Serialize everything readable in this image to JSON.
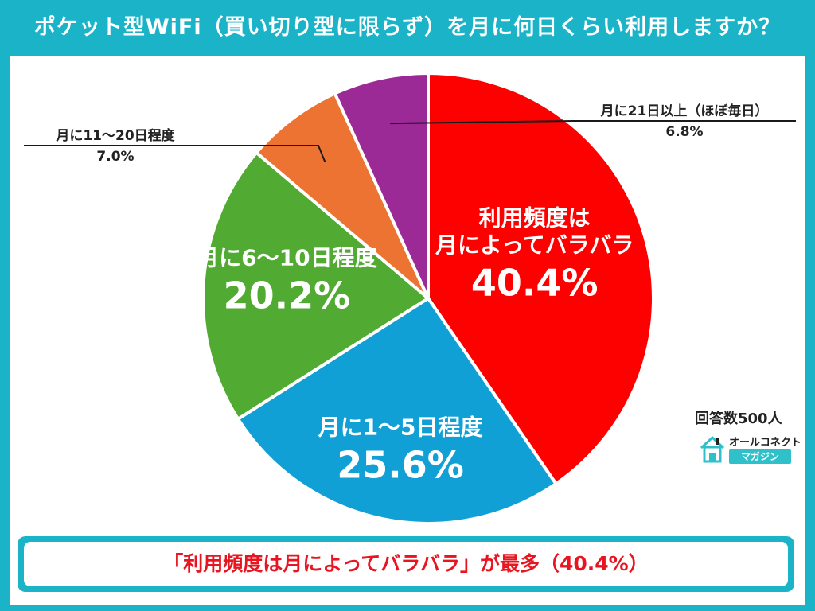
{
  "header": {
    "title": "ポケット型WiFi（買い切り型に限らず）を月に何日くらい利用しますか？"
  },
  "chart_data": {
    "type": "pie",
    "title": "ポケット型WiFi（買い切り型に限らず）を月に何日くらい利用しますか？",
    "slices": [
      {
        "label_lines": [
          "利用頻度は",
          "月によってバラバラ"
        ],
        "value": 40.4,
        "display": "40.4%",
        "color": "#fd0000"
      },
      {
        "label_lines": [
          "月に1〜5日程度"
        ],
        "value": 25.6,
        "display": "25.6%",
        "color": "#11a0d6"
      },
      {
        "label_lines": [
          "月に6〜10日程度"
        ],
        "value": 20.2,
        "display": "20.2%",
        "color": "#51aa31"
      },
      {
        "label_lines": [
          "月に11〜20日程度"
        ],
        "value": 7.0,
        "display": "7.0%",
        "color": "#ec7331"
      },
      {
        "label_lines": [
          "月に21日以上（ほぼ毎日）"
        ],
        "value": 6.8,
        "display": "6.8%",
        "color": "#9b2996"
      }
    ]
  },
  "annotations": {
    "respondents": "回答数500人",
    "logo_top": "オールコネクト",
    "logo_bottom": "マガジン"
  },
  "summary": {
    "text": "「利用頻度は月によってバラバラ」が最多（40.4%）"
  }
}
